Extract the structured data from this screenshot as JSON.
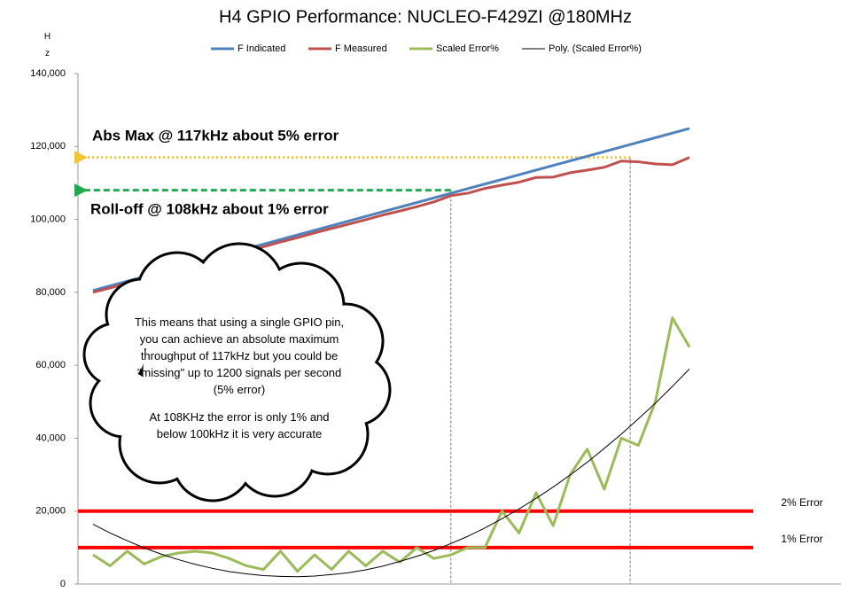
{
  "chart_data": {
    "type": "line",
    "title": "H4 GPIO Performance: NUCLEO-F429ZI @180MHz",
    "y_label": "Hz",
    "categories": [
      null,
      null,
      null,
      null,
      null,
      null,
      null,
      null,
      null,
      null,
      null,
      null,
      null,
      null,
      null,
      null,
      null,
      null,
      null,
      null,
      null,
      null,
      null,
      null,
      null,
      null,
      null,
      null,
      null,
      null,
      null,
      null,
      null,
      null,
      null,
      null
    ],
    "ylim": [
      0,
      140000
    ],
    "yticks": [
      0,
      {
        "value": 20000,
        "label": "20,000"
      },
      {
        "value": 40000,
        "label": "40,000"
      },
      {
        "value": 60000,
        "label": "60,000"
      },
      {
        "value": 80000,
        "label": "80,000"
      },
      {
        "value": 100000,
        "label": "100,000"
      },
      {
        "value": 120000,
        "label": "120,000"
      },
      {
        "value": 140000,
        "label": "140,000"
      }
    ],
    "grid": false,
    "legend": "top",
    "series": [
      {
        "name": "F Indicated",
        "color": "#4f81bd",
        "width": 3,
        "values": [
          80500,
          81770,
          83040,
          84310,
          85580,
          86850,
          88120,
          89390,
          90660,
          91930,
          93200,
          94470,
          95740,
          97010,
          98280,
          99550,
          100820,
          102090,
          103360,
          104630,
          105900,
          107170,
          108440,
          109710,
          110980,
          112250,
          113520,
          114790,
          116060,
          117330,
          118600,
          119870,
          121140,
          122410,
          123680,
          124950
        ]
      },
      {
        "name": "F Measured",
        "color": "#c0504d",
        "width": 3,
        "values": [
          80000,
          81200,
          82500,
          83700,
          85000,
          86200,
          87500,
          88700,
          90000,
          91200,
          92500,
          93800,
          95000,
          96300,
          97500,
          98700,
          99900,
          101200,
          102300,
          103500,
          104800,
          106500,
          107200,
          108500,
          109400,
          110200,
          111500,
          111600,
          112800,
          113500,
          114300,
          116000,
          115800,
          115200,
          115000,
          117000
        ]
      },
      {
        "name": "Scaled Error%",
        "color": "#9bbb59",
        "width": 3,
        "values": [
          8000,
          5000,
          9000,
          5500,
          7500,
          8500,
          9000,
          8500,
          7000,
          5000,
          4000,
          9000,
          3500,
          8000,
          4000,
          9000,
          5000,
          9000,
          6000,
          10000,
          7000,
          8000,
          10000,
          10000,
          20000,
          14000,
          25000,
          16000,
          30000,
          37000,
          26000,
          40000,
          38000,
          50000,
          73000,
          65000
        ]
      },
      {
        "name": "Poly. (Scaled Error%)",
        "color": "#000000",
        "width": 1,
        "values": [
          16400,
          14000,
          11900,
          9900,
          8200,
          6700,
          5400,
          4300,
          3400,
          2800,
          2300,
          2100,
          2000,
          2200,
          2600,
          3100,
          3900,
          4900,
          6200,
          7600,
          9200,
          11100,
          13100,
          15400,
          17900,
          20600,
          23500,
          26600,
          29900,
          33400,
          37200,
          41100,
          45300,
          49600,
          54200,
          59000
        ]
      }
    ],
    "threshold_lines": [
      {
        "label": "2% Error",
        "value": 20000,
        "color": "#ff0000"
      },
      {
        "label": "1% Error",
        "value": 10000,
        "color": "#ff0000"
      }
    ],
    "annotations": [
      {
        "text": "Abs Max @ 117kHz about 5% error",
        "value": 117000,
        "color": "#f5c431"
      },
      {
        "text": "Roll-off @ 108kHz about 1% error",
        "value": 108000,
        "color": "#1faa50"
      }
    ],
    "note": [
      "This means that using a single GPIO pin, you can achieve an absolute maximum throughput of 117kHz but you could be \"missing\" up to  1200 signals per second (5% error)",
      "At 108KHz the error is only 1% and below  100kHz it is very accurate"
    ]
  }
}
